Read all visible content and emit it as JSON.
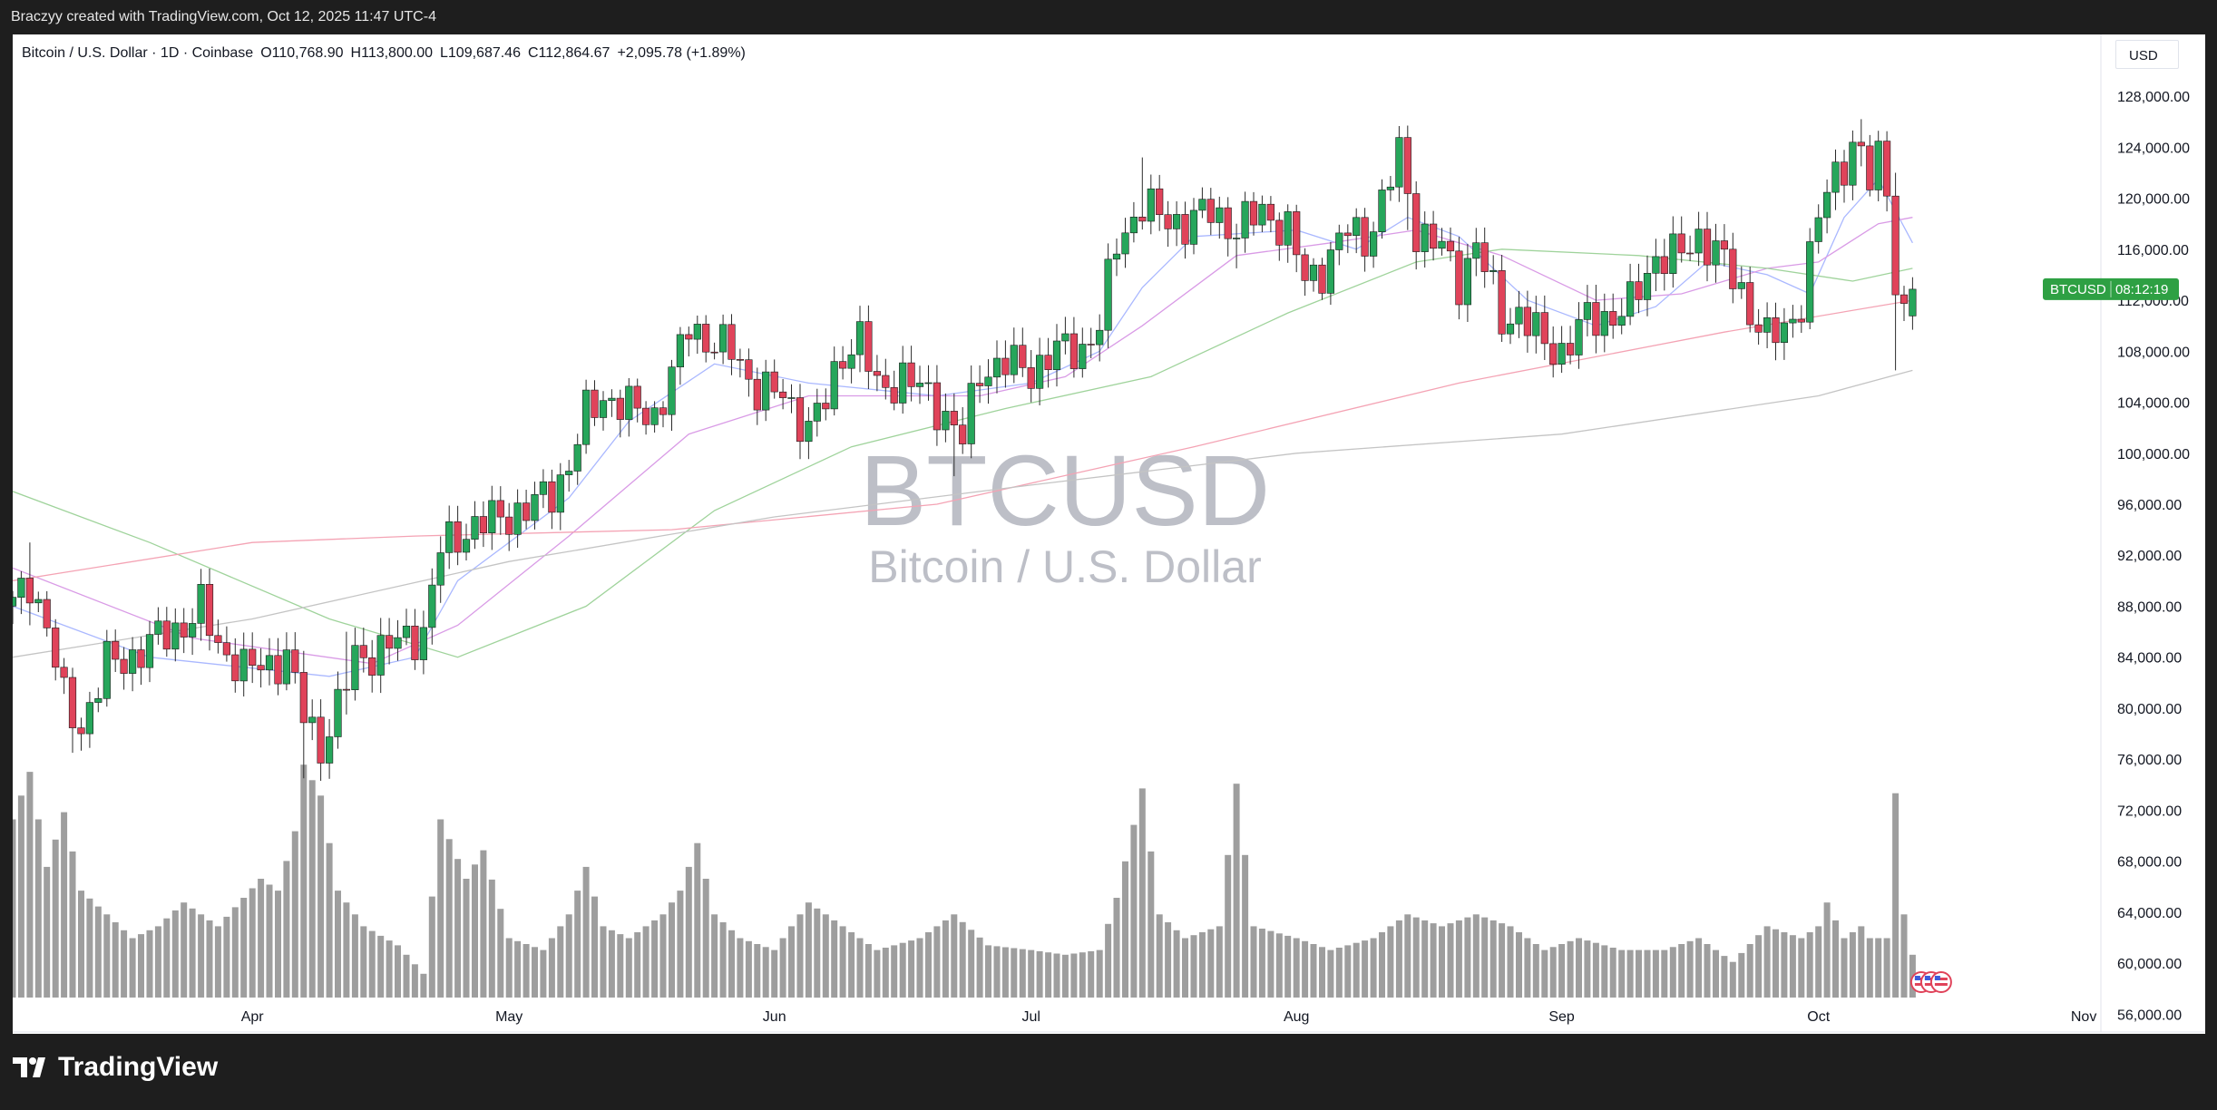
{
  "header": {
    "text": "Braczyy created with TradingView.com, Oct 12, 2025 11:47 UTC-4"
  },
  "legend": {
    "symbol": "Bitcoin / U.S. Dollar · 1D · Coinbase",
    "open": "O110,768.90",
    "high": "H113,800.00",
    "low": "L109,687.46",
    "close": "C112,864.67",
    "change": "+2,095.78 (+1.89%)"
  },
  "currency": "USD",
  "watermark": {
    "symbol": "BTCUSD",
    "name": "Bitcoin / U.S. Dollar"
  },
  "price_label": {
    "symbol": "BTCUSD",
    "countdown": "08:12:19",
    "color": "#2ea043"
  },
  "footer": {
    "brand": "TradingView"
  },
  "colors": {
    "up": "#26a65b",
    "down": "#e0435a",
    "volume": "#9e9e9e",
    "ma1": "#aab8ff",
    "ma2": "#d99be6",
    "ma3": "#9fd39b",
    "ma4": "#f4a3b4",
    "ma5": "#c4c4c4"
  },
  "chart_data": {
    "type": "candlestick",
    "y_ticks": [
      "128,000.00",
      "124,000.00",
      "120,000.00",
      "116,000.00",
      "112,000.00",
      "108,000.00",
      "104,000.00",
      "100,000.00",
      "96,000.00",
      "92,000.00",
      "88,000.00",
      "84,000.00",
      "80,000.00",
      "76,000.00",
      "72,000.00",
      "68,000.00",
      "64,000.00",
      "60,000.00",
      "56,000.00"
    ],
    "y_tick_values": [
      128000,
      124000,
      120000,
      116000,
      112000,
      108000,
      104000,
      100000,
      96000,
      92000,
      88000,
      84000,
      80000,
      76000,
      72000,
      68000,
      64000,
      60000,
      56000
    ],
    "x_ticks": [
      {
        "label": "Apr",
        "date": "2025-04-01"
      },
      {
        "label": "May",
        "date": "2025-05-01"
      },
      {
        "label": "Jun",
        "date": "2025-06-01"
      },
      {
        "label": "Jul",
        "date": "2025-07-01"
      },
      {
        "label": "Aug",
        "date": "2025-08-01"
      },
      {
        "label": "Sep",
        "date": "2025-09-01"
      },
      {
        "label": "Oct",
        "date": "2025-10-01"
      },
      {
        "label": "Nov",
        "date": "2025-11-01"
      }
    ],
    "x_range": [
      "2025-03-04",
      "2025-11-03"
    ],
    "price_range": [
      54600,
      130000
    ],
    "close_anchors": [
      [
        "2025-03-04",
        88000
      ],
      [
        "2025-03-06",
        90000
      ],
      [
        "2025-03-08",
        86500
      ],
      [
        "2025-03-10",
        80500
      ],
      [
        "2025-03-12",
        78500
      ],
      [
        "2025-03-15",
        83500
      ],
      [
        "2025-03-18",
        84000
      ],
      [
        "2025-03-21",
        85500
      ],
      [
        "2025-03-24",
        86500
      ],
      [
        "2025-03-26",
        87800
      ],
      [
        "2025-03-28",
        85000
      ],
      [
        "2025-03-31",
        83000
      ],
      [
        "2025-04-03",
        83500
      ],
      [
        "2025-04-05",
        84000
      ],
      [
        "2025-04-07",
        79500
      ],
      [
        "2025-04-09",
        77000
      ],
      [
        "2025-04-11",
        80000
      ],
      [
        "2025-04-13",
        84000
      ],
      [
        "2025-04-16",
        84500
      ],
      [
        "2025-04-19",
        85500
      ],
      [
        "2025-04-21",
        86000
      ],
      [
        "2025-04-23",
        92500
      ],
      [
        "2025-04-26",
        94000
      ],
      [
        "2025-04-30",
        95000
      ],
      [
        "2025-05-03",
        95500
      ],
      [
        "2025-05-06",
        97000
      ],
      [
        "2025-05-08",
        99000
      ],
      [
        "2025-05-10",
        103000
      ],
      [
        "2025-05-12",
        104500
      ],
      [
        "2025-05-15",
        103500
      ],
      [
        "2025-05-18",
        103000
      ],
      [
        "2025-05-20",
        106000
      ],
      [
        "2025-05-22",
        110000
      ],
      [
        "2025-05-25",
        108500
      ],
      [
        "2025-05-27",
        108000
      ],
      [
        "2025-05-30",
        105000
      ],
      [
        "2025-06-02",
        104500
      ],
      [
        "2025-06-05",
        102000
      ],
      [
        "2025-06-07",
        104000
      ],
      [
        "2025-06-09",
        108000
      ],
      [
        "2025-06-11",
        109000
      ],
      [
        "2025-06-13",
        105000
      ],
      [
        "2025-06-16",
        106000
      ],
      [
        "2025-06-19",
        104500
      ],
      [
        "2025-06-21",
        103000
      ],
      [
        "2025-06-23",
        101000
      ],
      [
        "2025-06-25",
        106500
      ],
      [
        "2025-06-28",
        107000
      ],
      [
        "2025-07-01",
        106500
      ],
      [
        "2025-07-04",
        108000
      ],
      [
        "2025-07-07",
        108200
      ],
      [
        "2025-07-09",
        110000
      ],
      [
        "2025-07-11",
        116500
      ],
      [
        "2025-07-14",
        119500
      ],
      [
        "2025-07-16",
        118500
      ],
      [
        "2025-07-19",
        118000
      ],
      [
        "2025-07-22",
        119000
      ],
      [
        "2025-07-25",
        117500
      ],
      [
        "2025-07-28",
        119000
      ],
      [
        "2025-07-31",
        117500
      ],
      [
        "2025-08-02",
        113500
      ],
      [
        "2025-08-04",
        114500
      ],
      [
        "2025-08-07",
        117500
      ],
      [
        "2025-08-09",
        116800
      ],
      [
        "2025-08-11",
        119500
      ],
      [
        "2025-08-13",
        123500
      ],
      [
        "2025-08-15",
        117500
      ],
      [
        "2025-08-18",
        116000
      ],
      [
        "2025-08-20",
        113500
      ],
      [
        "2025-08-22",
        116500
      ],
      [
        "2025-08-25",
        110500
      ],
      [
        "2025-08-27",
        111000
      ],
      [
        "2025-08-30",
        108500
      ],
      [
        "2025-09-01",
        108000
      ],
      [
        "2025-09-04",
        110500
      ],
      [
        "2025-09-07",
        110800
      ],
      [
        "2025-09-09",
        111500
      ],
      [
        "2025-09-12",
        115500
      ],
      [
        "2025-09-15",
        115500
      ],
      [
        "2025-09-17",
        117000
      ],
      [
        "2025-09-19",
        116000
      ],
      [
        "2025-09-22",
        112500
      ],
      [
        "2025-09-25",
        109000
      ],
      [
        "2025-09-27",
        109500
      ],
      [
        "2025-09-29",
        112000
      ],
      [
        "2025-10-01",
        118500
      ],
      [
        "2025-10-03",
        122000
      ],
      [
        "2025-10-05",
        124000
      ],
      [
        "2025-10-06",
        123500
      ],
      [
        "2025-10-07",
        121000
      ],
      [
        "2025-10-08",
        123000
      ],
      [
        "2025-10-09",
        121500
      ],
      [
        "2025-10-10",
        113200
      ],
      [
        "2025-10-11",
        110768.9
      ],
      [
        "2025-10-12",
        112864.67
      ]
    ],
    "spikes": {
      "2025-03-06": [
        93000,
        86500
      ],
      "2025-03-11": [
        83000,
        76500
      ],
      "2025-04-07": [
        84500,
        74500
      ],
      "2025-04-12": [
        86000,
        79500
      ],
      "2025-06-22": [
        103500,
        98200
      ],
      "2025-07-14": [
        123200,
        118500
      ],
      "2025-07-25": [
        118000,
        114500
      ],
      "2025-08-14": [
        124500,
        117500
      ],
      "2025-10-06": [
        126200,
        122500
      ],
      "2025-10-10": [
        122000,
        106500
      ]
    },
    "last_bar": {
      "date": "2025-10-12",
      "open": 110768.9,
      "high": 113800.0,
      "low": 109687.46,
      "close": 112864.67
    },
    "volume_anchors": [
      [
        "2025-03-04",
        0.75
      ],
      [
        "2025-03-06",
        0.95
      ],
      [
        "2025-03-08",
        0.55
      ],
      [
        "2025-03-10",
        0.78
      ],
      [
        "2025-03-12",
        0.45
      ],
      [
        "2025-03-15",
        0.35
      ],
      [
        "2025-03-18",
        0.25
      ],
      [
        "2025-03-21",
        0.3
      ],
      [
        "2025-03-24",
        0.4
      ],
      [
        "2025-03-26",
        0.35
      ],
      [
        "2025-03-28",
        0.3
      ],
      [
        "2025-04-02",
        0.5
      ],
      [
        "2025-04-04",
        0.45
      ],
      [
        "2025-04-06",
        0.7
      ],
      [
        "2025-04-07",
        0.98
      ],
      [
        "2025-04-09",
        0.85
      ],
      [
        "2025-04-11",
        0.45
      ],
      [
        "2025-04-14",
        0.3
      ],
      [
        "2025-04-18",
        0.22
      ],
      [
        "2025-04-21",
        0.1
      ],
      [
        "2025-04-23",
        0.75
      ],
      [
        "2025-04-26",
        0.5
      ],
      [
        "2025-04-28",
        0.62
      ],
      [
        "2025-05-01",
        0.25
      ],
      [
        "2025-05-05",
        0.2
      ],
      [
        "2025-05-08",
        0.35
      ],
      [
        "2025-05-10",
        0.55
      ],
      [
        "2025-05-12",
        0.3
      ],
      [
        "2025-05-15",
        0.25
      ],
      [
        "2025-05-19",
        0.35
      ],
      [
        "2025-05-21",
        0.45
      ],
      [
        "2025-05-23",
        0.65
      ],
      [
        "2025-05-25",
        0.35
      ],
      [
        "2025-05-28",
        0.25
      ],
      [
        "2025-06-01",
        0.2
      ],
      [
        "2025-06-05",
        0.4
      ],
      [
        "2025-06-09",
        0.3
      ],
      [
        "2025-06-13",
        0.2
      ],
      [
        "2025-06-18",
        0.25
      ],
      [
        "2025-06-22",
        0.35
      ],
      [
        "2025-06-26",
        0.22
      ],
      [
        "2025-07-01",
        0.2
      ],
      [
        "2025-07-05",
        0.18
      ],
      [
        "2025-07-09",
        0.2
      ],
      [
        "2025-07-11",
        0.42
      ],
      [
        "2025-07-14",
        0.88
      ],
      [
        "2025-07-16",
        0.35
      ],
      [
        "2025-07-19",
        0.25
      ],
      [
        "2025-07-23",
        0.3
      ],
      [
        "2025-07-25",
        0.9
      ],
      [
        "2025-07-27",
        0.3
      ],
      [
        "2025-08-01",
        0.25
      ],
      [
        "2025-08-05",
        0.2
      ],
      [
        "2025-08-10",
        0.25
      ],
      [
        "2025-08-14",
        0.35
      ],
      [
        "2025-08-18",
        0.3
      ],
      [
        "2025-08-22",
        0.35
      ],
      [
        "2025-08-26",
        0.3
      ],
      [
        "2025-08-30",
        0.2
      ],
      [
        "2025-09-03",
        0.25
      ],
      [
        "2025-09-08",
        0.2
      ],
      [
        "2025-09-13",
        0.2
      ],
      [
        "2025-09-17",
        0.25
      ],
      [
        "2025-09-21",
        0.15
      ],
      [
        "2025-09-25",
        0.3
      ],
      [
        "2025-09-29",
        0.25
      ],
      [
        "2025-10-01",
        0.3
      ],
      [
        "2025-10-02",
        0.4
      ],
      [
        "2025-10-04",
        0.25
      ],
      [
        "2025-10-06",
        0.3
      ],
      [
        "2025-10-07",
        0.25
      ],
      [
        "2025-10-09",
        0.25
      ],
      [
        "2025-10-10",
        0.86
      ],
      [
        "2025-10-11",
        0.35
      ],
      [
        "2025-10-12",
        0.18
      ]
    ],
    "moving_averages": [
      {
        "color": "#aab8ff",
        "points": [
          [
            "2025-03-04",
            88000
          ],
          [
            "2025-03-20",
            84000
          ],
          [
            "2025-04-10",
            82500
          ],
          [
            "2025-04-20",
            84000
          ],
          [
            "2025-04-25",
            90000
          ],
          [
            "2025-05-08",
            96500
          ],
          [
            "2025-05-15",
            102500
          ],
          [
            "2025-05-25",
            107000
          ],
          [
            "2025-06-05",
            105500
          ],
          [
            "2025-06-20",
            104500
          ],
          [
            "2025-07-01",
            105500
          ],
          [
            "2025-07-09",
            108000
          ],
          [
            "2025-07-14",
            113000
          ],
          [
            "2025-07-20",
            117000
          ],
          [
            "2025-08-01",
            117500
          ],
          [
            "2025-08-08",
            116000
          ],
          [
            "2025-08-14",
            118500
          ],
          [
            "2025-08-20",
            117000
          ],
          [
            "2025-08-28",
            112000
          ],
          [
            "2025-09-05",
            110000
          ],
          [
            "2025-09-12",
            111500
          ],
          [
            "2025-09-18",
            115000
          ],
          [
            "2025-09-25",
            114000
          ],
          [
            "2025-09-30",
            112500
          ],
          [
            "2025-10-04",
            118500
          ],
          [
            "2025-10-08",
            121500
          ],
          [
            "2025-10-12",
            116500
          ]
        ]
      },
      {
        "color": "#d99be6",
        "points": [
          [
            "2025-03-04",
            91000
          ],
          [
            "2025-03-25",
            85500
          ],
          [
            "2025-04-15",
            83500
          ],
          [
            "2025-04-25",
            86500
          ],
          [
            "2025-05-08",
            93500
          ],
          [
            "2025-05-22",
            101500
          ],
          [
            "2025-06-05",
            104500
          ],
          [
            "2025-06-25",
            104500
          ],
          [
            "2025-07-05",
            106000
          ],
          [
            "2025-07-14",
            110000
          ],
          [
            "2025-07-25",
            115500
          ],
          [
            "2025-08-05",
            116500
          ],
          [
            "2025-08-15",
            117500
          ],
          [
            "2025-08-25",
            115500
          ],
          [
            "2025-09-05",
            112000
          ],
          [
            "2025-09-15",
            112500
          ],
          [
            "2025-09-25",
            114500
          ],
          [
            "2025-10-01",
            115000
          ],
          [
            "2025-10-08",
            118000
          ],
          [
            "2025-10-12",
            118500
          ]
        ]
      },
      {
        "color": "#9fd39b",
        "points": [
          [
            "2025-03-04",
            97000
          ],
          [
            "2025-03-20",
            93000
          ],
          [
            "2025-04-10",
            87000
          ],
          [
            "2025-04-25",
            84000
          ],
          [
            "2025-05-10",
            88000
          ],
          [
            "2025-05-25",
            95500
          ],
          [
            "2025-06-10",
            100500
          ],
          [
            "2025-06-28",
            103500
          ],
          [
            "2025-07-15",
            106000
          ],
          [
            "2025-07-31",
            111000
          ],
          [
            "2025-08-15",
            115000
          ],
          [
            "2025-08-25",
            116000
          ],
          [
            "2025-09-10",
            115500
          ],
          [
            "2025-09-25",
            114500
          ],
          [
            "2025-10-05",
            113500
          ],
          [
            "2025-10-12",
            114500
          ]
        ]
      },
      {
        "color": "#f4a3b4",
        "points": [
          [
            "2025-03-04",
            90000
          ],
          [
            "2025-04-01",
            93000
          ],
          [
            "2025-04-20",
            93500
          ],
          [
            "2025-05-20",
            94000
          ],
          [
            "2025-06-20",
            96000
          ],
          [
            "2025-07-20",
            100500
          ],
          [
            "2025-08-20",
            105500
          ],
          [
            "2025-09-20",
            109500
          ],
          [
            "2025-10-12",
            112000
          ]
        ]
      },
      {
        "color": "#c4c4c4",
        "points": [
          [
            "2025-03-04",
            84000
          ],
          [
            "2025-04-01",
            87000
          ],
          [
            "2025-05-01",
            91500
          ],
          [
            "2025-06-01",
            95000
          ],
          [
            "2025-07-01",
            97500
          ],
          [
            "2025-08-01",
            100000
          ],
          [
            "2025-09-01",
            101500
          ],
          [
            "2025-10-01",
            104500
          ],
          [
            "2025-10-12",
            106500
          ]
        ]
      }
    ]
  }
}
